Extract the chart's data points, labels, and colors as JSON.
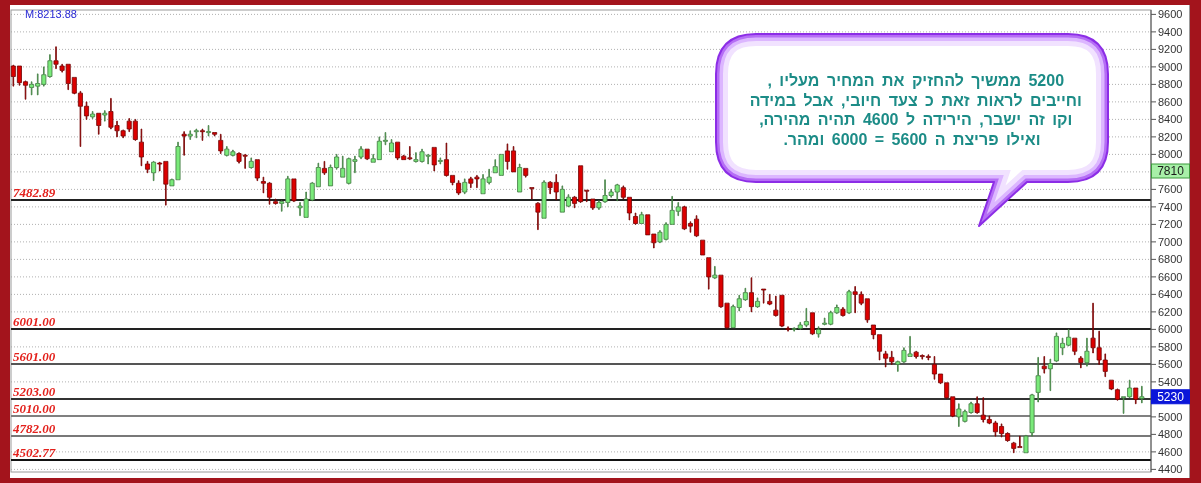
{
  "chart_data": {
    "type": "candlestick",
    "categories": [
      null,
      null,
      null,
      null,
      null,
      null,
      null,
      null,
      null,
      null,
      null,
      null,
      null,
      null,
      null,
      null,
      null,
      null,
      null,
      null,
      null,
      null,
      null,
      null,
      null,
      null,
      null,
      null,
      null,
      null,
      null,
      null,
      null,
      null,
      null,
      null,
      null,
      null,
      null,
      null,
      null,
      null,
      null,
      null,
      null,
      null,
      null,
      null,
      null,
      null,
      null,
      null,
      null,
      null,
      null,
      null,
      null,
      null,
      null,
      null,
      null,
      null,
      null,
      null,
      null,
      null,
      null,
      null,
      null,
      null,
      null,
      null,
      null,
      null,
      null,
      null,
      null,
      null,
      null,
      null,
      null,
      null,
      null,
      null,
      null,
      null,
      null,
      null,
      null,
      null,
      null,
      null,
      null,
      null,
      null,
      null,
      null,
      null,
      null,
      null,
      null,
      null,
      null,
      null,
      null,
      null,
      null,
      null,
      null,
      null,
      null,
      null,
      null,
      null,
      null,
      null,
      null,
      null,
      null,
      null,
      null,
      null,
      null,
      null,
      null,
      null,
      null,
      null,
      null,
      null,
      null,
      null,
      null,
      null,
      null,
      null,
      null,
      null,
      null,
      null,
      null,
      null,
      null,
      null,
      null,
      null,
      null,
      null,
      null,
      null,
      null,
      null,
      null,
      null,
      null,
      null,
      null,
      null,
      null,
      null,
      null,
      null,
      null,
      null,
      null,
      null,
      null,
      null,
      null,
      null,
      null,
      null,
      null,
      null,
      null,
      null,
      null,
      null,
      null,
      null,
      null,
      null,
      null,
      null,
      null,
      null
    ],
    "ohlc": [
      [
        9010,
        9020,
        8780,
        8890
      ],
      [
        9010,
        9010,
        8790,
        8820
      ],
      [
        8830,
        8840,
        8630,
        8790
      ],
      [
        8765,
        8830,
        8680,
        8800
      ],
      [
        8780,
        8920,
        8680,
        8810
      ],
      [
        8800,
        9000,
        8780,
        8910
      ],
      [
        8890,
        9140,
        8880,
        9070
      ],
      [
        9070,
        9230,
        8980,
        9030
      ],
      [
        9010,
        9030,
        8940,
        8960
      ],
      [
        9030,
        9030,
        8740,
        8810
      ],
      [
        8880,
        8880,
        8690,
        8700
      ],
      [
        8700,
        8720,
        8090,
        8550
      ],
      [
        8550,
        8600,
        8400,
        8440
      ],
      [
        8430,
        8490,
        8410,
        8460
      ],
      [
        8470,
        8470,
        8230,
        8330
      ],
      [
        8450,
        8500,
        8380,
        8470
      ],
      [
        8490,
        8640,
        8290,
        8310
      ],
      [
        8330,
        8380,
        8200,
        8270
      ],
      [
        8270,
        8280,
        8190,
        8210
      ],
      [
        8380,
        8410,
        8260,
        8290
      ],
      [
        8380,
        8400,
        8160,
        8170
      ],
      [
        8140,
        8290,
        7870,
        7970
      ],
      [
        7890,
        7920,
        7790,
        7830
      ],
      [
        7790,
        7920,
        7700,
        7910
      ],
      [
        7900,
        7910,
        7810,
        7890
      ],
      [
        7920,
        7920,
        7420,
        7660
      ],
      [
        7640,
        7720,
        7640,
        7710
      ],
      [
        7710,
        8140,
        7710,
        8090
      ],
      [
        8230,
        8260,
        7990,
        8210
      ],
      [
        8210,
        8270,
        8170,
        8230
      ],
      [
        8260,
        8290,
        8190,
        8270
      ],
      [
        8270,
        8290,
        8160,
        8260
      ],
      [
        8250,
        8330,
        8210,
        8260
      ],
      [
        8250,
        8250,
        8210,
        8230
      ],
      [
        8160,
        8230,
        8010,
        8040
      ],
      [
        7990,
        8090,
        7980,
        8060
      ],
      [
        7990,
        8050,
        7980,
        8030
      ],
      [
        8010,
        8020,
        7900,
        7920
      ],
      [
        7990,
        8000,
        7840,
        7980
      ],
      [
        7850,
        7960,
        7840,
        7920
      ],
      [
        7940,
        7940,
        7700,
        7730
      ],
      [
        7690,
        7740,
        7560,
        7670
      ],
      [
        7670,
        7680,
        7430,
        7510
      ],
      [
        7460,
        7490,
        7430,
        7440
      ],
      [
        7440,
        7470,
        7350,
        7460
      ],
      [
        7450,
        7750,
        7400,
        7720
      ],
      [
        7720,
        7720,
        7460,
        7470
      ],
      [
        7390,
        7450,
        7300,
        7410
      ],
      [
        7280,
        7570,
        7280,
        7490
      ],
      [
        7480,
        7680,
        7470,
        7670
      ],
      [
        7630,
        7900,
        7630,
        7850
      ],
      [
        7840,
        7920,
        7770,
        7790
      ],
      [
        7640,
        7880,
        7640,
        7850
      ],
      [
        7850,
        8000,
        7830,
        7970
      ],
      [
        7740,
        7980,
        7740,
        7840
      ],
      [
        7670,
        7960,
        7660,
        7950
      ],
      [
        7920,
        7980,
        7790,
        7940
      ],
      [
        7970,
        8090,
        7950,
        8060
      ],
      [
        8060,
        8060,
        7940,
        7950
      ],
      [
        7910,
        8000,
        7910,
        7950
      ],
      [
        7940,
        8200,
        7940,
        8150
      ],
      [
        8150,
        8250,
        8110,
        8160
      ],
      [
        8030,
        8170,
        8030,
        8130
      ],
      [
        8140,
        8140,
        7940,
        7960
      ],
      [
        7980,
        7990,
        7940,
        7940
      ],
      [
        7960,
        8090,
        7940,
        7950
      ],
      [
        7920,
        8020,
        7910,
        7940
      ],
      [
        7920,
        8060,
        7910,
        8030
      ],
      [
        7980,
        8000,
        7890,
        7990
      ],
      [
        8080,
        8080,
        7810,
        7880
      ],
      [
        7920,
        7960,
        7890,
        7930
      ],
      [
        7940,
        8130,
        7750,
        7760
      ],
      [
        7760,
        7760,
        7650,
        7680
      ],
      [
        7670,
        7700,
        7540,
        7560
      ],
      [
        7570,
        7720,
        7550,
        7680
      ],
      [
        7720,
        7740,
        7620,
        7670
      ],
      [
        7740,
        7760,
        7620,
        7720
      ],
      [
        7550,
        7770,
        7550,
        7720
      ],
      [
        7680,
        7830,
        7660,
        7740
      ],
      [
        7790,
        7940,
        7790,
        7860
      ],
      [
        7760,
        8000,
        7760,
        8000
      ],
      [
        8040,
        8120,
        7830,
        7920
      ],
      [
        8040,
        8090,
        7800,
        7800
      ],
      [
        7570,
        7890,
        7570,
        7850
      ],
      [
        7840,
        7840,
        7740,
        7760
      ],
      [
        7620,
        7620,
        7490,
        7610
      ],
      [
        7440,
        7450,
        7140,
        7340
      ],
      [
        7270,
        7700,
        7270,
        7680
      ],
      [
        7680,
        7690,
        7550,
        7620
      ],
      [
        7680,
        7770,
        7480,
        7570
      ],
      [
        7340,
        7640,
        7340,
        7600
      ],
      [
        7410,
        7540,
        7400,
        7510
      ],
      [
        7510,
        7520,
        7390,
        7440
      ],
      [
        7870,
        7870,
        7450,
        7460
      ],
      [
        7590,
        7590,
        7460,
        7580
      ],
      [
        7490,
        7490,
        7370,
        7390
      ],
      [
        7390,
        7470,
        7370,
        7450
      ],
      [
        7460,
        7710,
        7450,
        7530
      ],
      [
        7530,
        7600,
        7510,
        7570
      ],
      [
        7570,
        7660,
        7470,
        7650
      ],
      [
        7620,
        7640,
        7490,
        7510
      ],
      [
        7510,
        7510,
        7250,
        7330
      ],
      [
        7290,
        7330,
        7200,
        7210
      ],
      [
        7210,
        7340,
        7210,
        7310
      ],
      [
        7310,
        7310,
        7080,
        7080
      ],
      [
        7090,
        7090,
        6930,
        6990
      ],
      [
        7000,
        7130,
        6990,
        7110
      ],
      [
        7030,
        7220,
        7020,
        7200
      ],
      [
        7200,
        7520,
        7200,
        7360
      ],
      [
        7350,
        7450,
        7300,
        7400
      ],
      [
        7400,
        7410,
        7140,
        7150
      ],
      [
        7210,
        7230,
        7110,
        7180
      ],
      [
        7260,
        7300,
        7060,
        7070
      ],
      [
        7020,
        7020,
        6850,
        6850
      ],
      [
        6820,
        6820,
        6460,
        6600
      ],
      [
        6590,
        6720,
        6580,
        6620
      ],
      [
        6620,
        6620,
        6250,
        6260
      ],
      [
        6300,
        6300,
        6010,
        6020
      ],
      [
        6020,
        6280,
        6020,
        6260
      ],
      [
        6250,
        6390,
        6210,
        6350
      ],
      [
        6340,
        6470,
        6330,
        6420
      ],
      [
        6420,
        6590,
        6200,
        6260
      ],
      [
        6260,
        6360,
        6250,
        6320
      ],
      [
        6460,
        6460,
        6300,
        6450
      ],
      [
        6320,
        6400,
        6280,
        6290
      ],
      [
        6220,
        6380,
        6150,
        6160
      ],
      [
        6390,
        6390,
        6030,
        6040
      ],
      [
        6010,
        6030,
        5980,
        6000
      ],
      [
        6000,
        6020,
        5980,
        6010
      ],
      [
        6010,
        6080,
        6000,
        6050
      ],
      [
        6050,
        6240,
        6030,
        6090
      ],
      [
        6190,
        6190,
        5940,
        5950
      ],
      [
        5950,
        6030,
        5910,
        6000
      ],
      [
        6060,
        6130,
        6050,
        6070
      ],
      [
        6060,
        6210,
        6050,
        6190
      ],
      [
        6190,
        6280,
        6180,
        6250
      ],
      [
        6230,
        6250,
        6150,
        6160
      ],
      [
        6190,
        6450,
        6180,
        6430
      ],
      [
        6430,
        6490,
        6190,
        6400
      ],
      [
        6400,
        6430,
        6280,
        6300
      ],
      [
        6350,
        6350,
        6080,
        6110
      ],
      [
        6050,
        6050,
        5890,
        5940
      ],
      [
        5940,
        5940,
        5650,
        5750
      ],
      [
        5720,
        5750,
        5570,
        5670
      ],
      [
        5680,
        5750,
        5600,
        5630
      ],
      [
        5600,
        5640,
        5520,
        5630
      ],
      [
        5630,
        5790,
        5620,
        5760
      ],
      [
        5690,
        5920,
        5690,
        5720
      ],
      [
        5740,
        5750,
        5670,
        5690
      ],
      [
        5700,
        5710,
        5660,
        5690
      ],
      [
        5690,
        5710,
        5650,
        5680
      ],
      [
        5600,
        5690,
        5430,
        5490
      ],
      [
        5490,
        5490,
        5380,
        5390
      ],
      [
        5390,
        5390,
        5210,
        5220
      ],
      [
        5230,
        5230,
        5000,
        5010
      ],
      [
        5000,
        5150,
        4890,
        5090
      ],
      [
        4950,
        5080,
        4940,
        5060
      ],
      [
        5050,
        5170,
        5040,
        5150
      ],
      [
        5150,
        5230,
        5040,
        5050
      ],
      [
        5020,
        5220,
        4940,
        4970
      ],
      [
        4970,
        5010,
        4920,
        4930
      ],
      [
        4930,
        4950,
        4780,
        4830
      ],
      [
        4890,
        4920,
        4770,
        4810
      ],
      [
        4810,
        4820,
        4720,
        4730
      ],
      [
        4700,
        4710,
        4590,
        4640
      ],
      [
        4660,
        4780,
        4650,
        4650
      ],
      [
        4590,
        4790,
        4590,
        4780
      ],
      [
        4820,
        5260,
        4780,
        5250
      ],
      [
        5280,
        5680,
        5170,
        5470
      ],
      [
        5580,
        5690,
        5500,
        5550
      ],
      [
        5550,
        5660,
        5300,
        5610
      ],
      [
        5640,
        5960,
        5630,
        5920
      ],
      [
        5790,
        5900,
        5710,
        5840
      ],
      [
        5820,
        6000,
        5810,
        5910
      ],
      [
        5900,
        5900,
        5710,
        5750
      ],
      [
        5670,
        5690,
        5560,
        5620
      ],
      [
        5620,
        5900,
        5580,
        5750
      ],
      [
        5900,
        6300,
        5730,
        5790
      ],
      [
        5790,
        5980,
        5600,
        5650
      ],
      [
        5650,
        5720,
        5460,
        5520
      ],
      [
        5420,
        5420,
        5310,
        5320
      ],
      [
        5310,
        5320,
        5190,
        5200
      ],
      [
        5220,
        5230,
        5040,
        5230
      ],
      [
        5230,
        5420,
        5220,
        5330
      ],
      [
        5330,
        5330,
        5150,
        5200
      ],
      [
        5210,
        5350,
        5160,
        5230
      ]
    ],
    "colors": [
      "#dc0000",
      "#dc0000",
      "#dc0000",
      "#7aea7a",
      "#7aea7a",
      "#7aea7a",
      "#7aea7a",
      "#dc0000",
      "#dc0000",
      "#dc0000",
      "#dc0000",
      "#dc0000",
      "#dc0000",
      "#7aea7a",
      "#dc0000",
      "#7aea7a",
      "#dc0000",
      "#dc0000",
      "#dc0000",
      "#dc0000",
      "#dc0000",
      "#dc0000",
      "#dc0000",
      "#7aea7a",
      "#dc0000",
      "#dc0000",
      "#7aea7a",
      "#7aea7a",
      "#dc0000",
      "#7aea7a",
      "#7aea7a",
      "#dc0000",
      "#7aea7a",
      "#dc0000",
      "#dc0000",
      "#7aea7a",
      "#7aea7a",
      "#dc0000",
      "#dc0000",
      "#7aea7a",
      "#dc0000",
      "#dc0000",
      "#dc0000",
      "#dc0000",
      "#7aea7a",
      "#7aea7a",
      "#dc0000",
      "#7aea7a",
      "#7aea7a",
      "#7aea7a",
      "#7aea7a",
      "#dc0000",
      "#7aea7a",
      "#7aea7a",
      "#7aea7a",
      "#7aea7a",
      "#7aea7a",
      "#7aea7a",
      "#dc0000",
      "#7aea7a",
      "#7aea7a",
      "#7aea7a",
      "#7aea7a",
      "#dc0000",
      "#dc0000",
      "#dc0000",
      "#7aea7a",
      "#7aea7a",
      "#7aea7a",
      "#dc0000",
      "#7aea7a",
      "#dc0000",
      "#dc0000",
      "#dc0000",
      "#7aea7a",
      "#dc0000",
      "#dc0000",
      "#7aea7a",
      "#7aea7a",
      "#7aea7a",
      "#7aea7a",
      "#dc0000",
      "#dc0000",
      "#7aea7a",
      "#dc0000",
      "#dc0000",
      "#dc0000",
      "#7aea7a",
      "#dc0000",
      "#dc0000",
      "#7aea7a",
      "#7aea7a",
      "#dc0000",
      "#dc0000",
      "#dc0000",
      "#dc0000",
      "#7aea7a",
      "#7aea7a",
      "#7aea7a",
      "#7aea7a",
      "#dc0000",
      "#dc0000",
      "#dc0000",
      "#7aea7a",
      "#dc0000",
      "#dc0000",
      "#7aea7a",
      "#7aea7a",
      "#7aea7a",
      "#7aea7a",
      "#dc0000",
      "#dc0000",
      "#dc0000",
      "#dc0000",
      "#dc0000",
      "#7aea7a",
      "#dc0000",
      "#dc0000",
      "#7aea7a",
      "#7aea7a",
      "#7aea7a",
      "#dc0000",
      "#7aea7a",
      "#dc0000",
      "#dc0000",
      "#dc0000",
      "#dc0000",
      "#dc0000",
      "#7aea7a",
      "#7aea7a",
      "#7aea7a",
      "#dc0000",
      "#7aea7a",
      "#7aea7a",
      "#7aea7a",
      "#7aea7a",
      "#dc0000",
      "#7aea7a",
      "#dc0000",
      "#dc0000",
      "#dc0000",
      "#dc0000",
      "#dc0000",
      "#dc0000",
      "#dc0000",
      "#7aea7a",
      "#7aea7a",
      "#7aea7a",
      "#dc0000",
      "#dc0000",
      "#dc0000",
      "#dc0000",
      "#dc0000",
      "#dc0000",
      "#dc0000",
      "#7aea7a",
      "#7aea7a",
      "#7aea7a",
      "#dc0000",
      "#dc0000",
      "#dc0000",
      "#dc0000",
      "#dc0000",
      "#dc0000",
      "#dc0000",
      "#dc0000",
      "#7aea7a",
      "#7aea7a",
      "#7aea7a",
      "#dc0000",
      "#7aea7a",
      "#7aea7a",
      "#7aea7a",
      "#7aea7a",
      "#dc0000",
      "#dc0000",
      "#7aea7a",
      "#dc0000",
      "#dc0000",
      "#dc0000",
      "#dc0000",
      "#dc0000",
      "#7aea7a",
      "#7aea7a",
      "#dc0000",
      "#7aea7a"
    ],
    "ylim": [
      4370,
      9650
    ],
    "yticks": [
      4400,
      4600,
      4800,
      5000,
      {
        "value": 5200,
        "label": null
      },
      5400,
      5600,
      5800,
      6000,
      6200,
      6400,
      6600,
      6800,
      7000,
      7200,
      7400,
      7600,
      {
        "value": 7800,
        "label": null
      },
      8000,
      8200,
      8400,
      8600,
      8800,
      9000,
      9200,
      9400,
      9600
    ],
    "grid": "y",
    "tick_labels": "y",
    "ref_lines": [
      {
        "axis": "y",
        "value": 7482.89,
        "label": "7482.89",
        "color": "#222222"
      },
      {
        "axis": "y",
        "value": 6001,
        "label": "6001.00",
        "color": "#222222"
      },
      {
        "axis": "y",
        "value": 5601,
        "label": "5601.00",
        "color": "#555555"
      },
      {
        "axis": "y",
        "value": 5203,
        "label": "5203.00",
        "color": "#333333"
      },
      {
        "axis": "y",
        "value": 5010,
        "label": "5010.00",
        "color": "#808080"
      },
      {
        "axis": "y",
        "value": 4782,
        "label": "4782.00",
        "color": "#787878"
      },
      {
        "axis": "y",
        "value": 4502.77,
        "label": "4502.77",
        "color": "#111111"
      }
    ],
    "annotations": [
      "M:8213.88",
      "5200 ממשיך להחזיק את המחיר מעליו ,\nוחייבים לראות זאת כ צעד חיובי, אבל במידה\nוקו זה ישבר, הירידה ל 4600 תהיה מהירה,\nואילו פריצת ה 5600 = 6000 ומהר.",
      {
        "text": "7810",
        "y": 7810
      },
      {
        "text": "5230",
        "y": 5230
      }
    ]
  }
}
